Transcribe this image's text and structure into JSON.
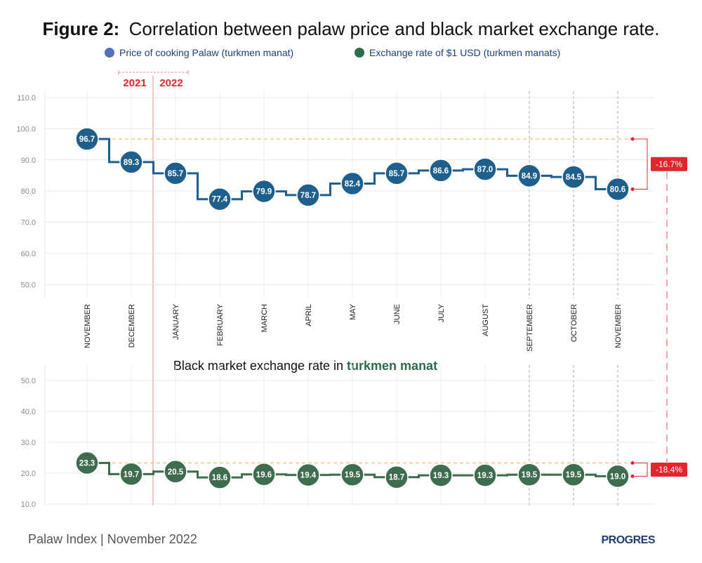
{
  "figure": {
    "title_bold": "Figure 2:",
    "title_rest": "Correlation between palaw price and black market exchange rate."
  },
  "legend": [
    {
      "label": "Price of cooking Palaw (turkmen manat)",
      "color": "#4f72b8"
    },
    {
      "label": "Exchange rate of $1 USD  (turkmen manats)",
      "color": "#2e6b4c"
    }
  ],
  "years": {
    "left": "2021",
    "right": "2022"
  },
  "subtitle": {
    "text": "Black market exchange rate in ",
    "emphasis": "turkmen manat"
  },
  "footer": "Palaw Index | November 2022",
  "logo": "PROGRES",
  "colors": {
    "palaw": "#1f5f8e",
    "exchange": "#3e6c4f",
    "accent": "#e3262b",
    "reference": "#f5c97a"
  },
  "chart_data": [
    {
      "type": "line",
      "categories": [
        "NOVEMBER",
        "DECEMBER",
        "JANUARY",
        "FEBRUARY",
        "MARCH",
        "APRIL",
        "MAY",
        "JUNE",
        "JULY",
        "AUGUST",
        "SEPTEMBER",
        "OCTOBER",
        "NOVEMBER"
      ],
      "series": [
        {
          "name": "Price of cooking Palaw (turkmen manat)",
          "values": [
            96.7,
            89.3,
            85.7,
            77.4,
            79.9,
            78.7,
            82.4,
            85.7,
            86.6,
            87.0,
            84.9,
            84.5,
            80.6
          ]
        }
      ],
      "data_labels": [
        "96.7",
        "89.3",
        "85.7",
        "77.4",
        "79.9",
        "78.7",
        "82.4",
        "85.7",
        "86.6",
        "87.0",
        "84.9",
        "84.5",
        "80.6"
      ],
      "ylim": [
        45,
        110
      ],
      "yticks": [
        "50.0",
        "60.0",
        "70.0",
        "80.0",
        "90.0",
        "100.0",
        "110.0"
      ],
      "step": true,
      "change_label": "-16.7%",
      "grid": true
    },
    {
      "type": "line",
      "title": "Black market exchange rate in turkmen manat",
      "categories": [
        "NOVEMBER",
        "DECEMBER",
        "JANUARY",
        "FEBRUARY",
        "MARCH",
        "APRIL",
        "MAY",
        "JUNE",
        "JULY",
        "AUGUST",
        "SEPTEMBER",
        "OCTOBER",
        "NOVEMBER"
      ],
      "series": [
        {
          "name": "Exchange rate of $1 USD  (turkmen manats)",
          "values": [
            23.3,
            19.7,
            20.5,
            18.6,
            19.6,
            19.4,
            19.5,
            18.7,
            19.3,
            19.3,
            19.5,
            19.5,
            19.0
          ]
        }
      ],
      "data_labels": [
        "23.3",
        "19.7",
        "20.5",
        "18.6",
        "19.6",
        "19.4",
        "19.5",
        "18.7",
        "19.3",
        "19.3",
        "19.5",
        "19.5",
        "19.0"
      ],
      "ylim": [
        10,
        55
      ],
      "yticks": [
        "10.0",
        "20.0",
        "30.0",
        "40.0",
        "50.0"
      ],
      "step": true,
      "change_label": "-18.4%",
      "grid": true
    }
  ]
}
